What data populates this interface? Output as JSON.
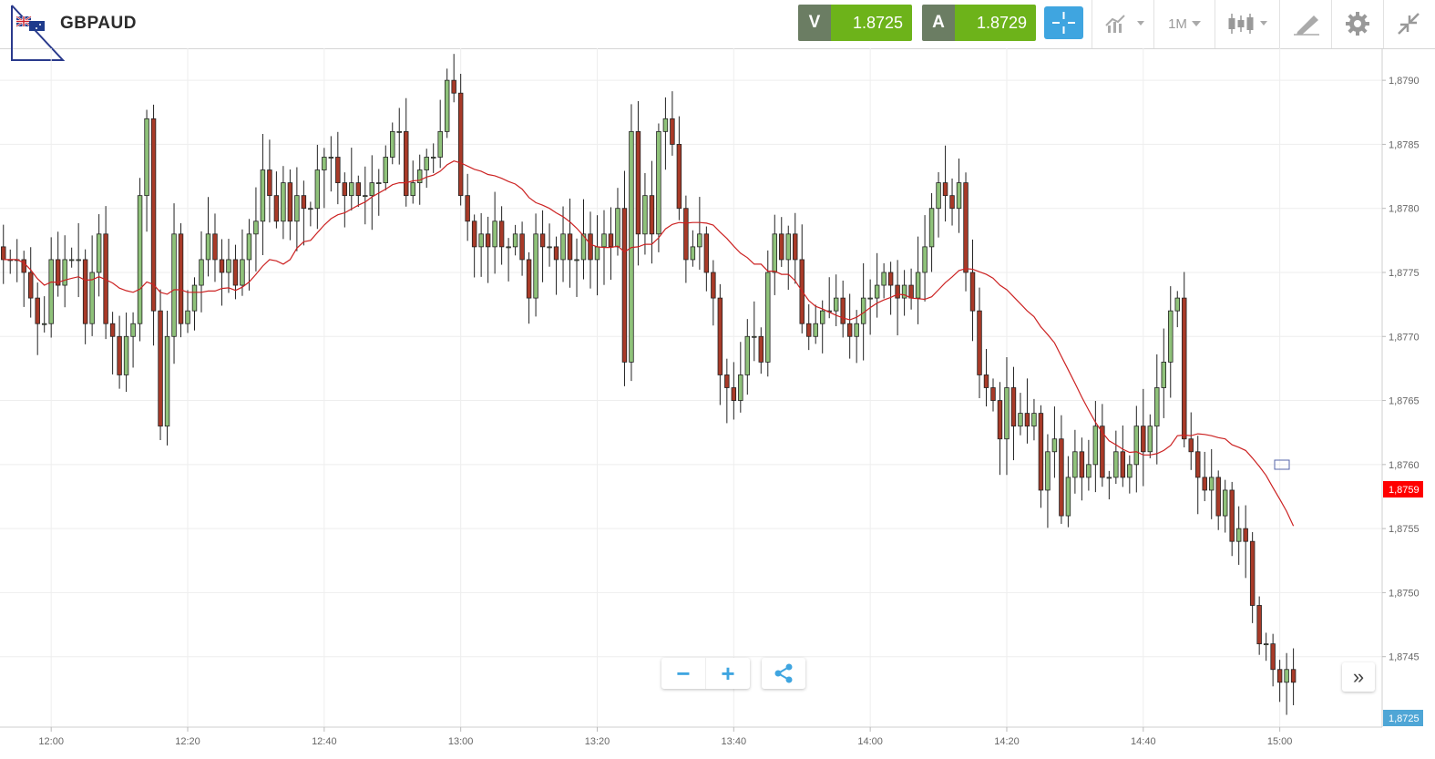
{
  "header": {
    "symbol": "GBPAUD",
    "sell_label": "V",
    "sell_price": "1.8725",
    "buy_label": "A",
    "buy_price": "1.8729",
    "timeframe": "1M",
    "icons": [
      "crosshair-icon",
      "chart-type-icon",
      "candlestick-icon",
      "drawing-tool-icon",
      "gear-icon",
      "collapse-icon"
    ]
  },
  "controls": {
    "zoom_out": "−",
    "zoom_in": "+",
    "share_icon": "share-icon",
    "scroll_forward": "»"
  },
  "colors": {
    "up": "#8fc27a",
    "down": "#a83a28",
    "ma": "#cc2222",
    "sell_bg": "#6db31a",
    "cross_bg": "#3fa5e0",
    "last_tag": "#ff0000",
    "current_tag": "#4fa6d6"
  },
  "chart_data": {
    "type": "candlestick",
    "x_tick_labels": [
      "12:00",
      "12:20",
      "12:40",
      "13:00",
      "13:20",
      "13:40",
      "14:00",
      "14:20",
      "14:40",
      "15:00"
    ],
    "y_tick_labels": [
      "1,8790",
      "1,8785",
      "1,8780",
      "1,8775",
      "1,8770",
      "1,8765",
      "1,8760",
      "1,8755",
      "1,8750",
      "1,8745"
    ],
    "y_ticks": [
      1.879,
      1.8785,
      1.878,
      1.8775,
      1.877,
      1.8765,
      1.876,
      1.8755,
      1.875,
      1.8745
    ],
    "ylim": [
      1.87395,
      1.87925
    ],
    "x_ticks_minutes": [
      0,
      20,
      40,
      60,
      80,
      100,
      120,
      140,
      160,
      180
    ],
    "xlim_minutes": [
      -7.5,
      195
    ],
    "last_price_label": "1,8759",
    "last_price": 1.8759,
    "current_price_label": "1,8725",
    "closes": [
      1.8776,
      1.8776,
      1.8776,
      1.8775,
      1.8773,
      1.8771,
      1.8771,
      1.8776,
      1.8774,
      1.8776,
      1.8776,
      1.8776,
      1.8771,
      1.8775,
      1.8778,
      1.8771,
      1.877,
      1.8767,
      1.877,
      1.8771,
      1.8781,
      1.8787,
      1.8772,
      1.8763,
      1.877,
      1.8778,
      1.8771,
      1.8772,
      1.8774,
      1.8776,
      1.8778,
      1.8776,
      1.8775,
      1.8776,
      1.8774,
      1.8776,
      1.8778,
      1.8779,
      1.8783,
      1.8781,
      1.8779,
      1.8782,
      1.8779,
      1.8781,
      1.878,
      1.878,
      1.8783,
      1.8784,
      1.8784,
      1.8782,
      1.8781,
      1.8782,
      1.8781,
      1.8781,
      1.8782,
      1.8782,
      1.8784,
      1.8786,
      1.8786,
      1.8781,
      1.8782,
      1.8783,
      1.8784,
      1.8784,
      1.8786,
      1.879,
      1.8789,
      1.8781,
      1.8779,
      1.8777,
      1.8778,
      1.8777,
      1.8779,
      1.8777,
      1.8777,
      1.8778,
      1.8776,
      1.8773,
      1.8778,
      1.8777,
      1.8777,
      1.8776,
      1.8778,
      1.8776,
      1.8776,
      1.8778,
      1.8776,
      1.8777,
      1.8778,
      1.8777,
      1.878,
      1.8768,
      1.8786,
      1.8778,
      1.8781,
      1.8778,
      1.8786,
      1.8787,
      1.8785,
      1.878,
      1.8776,
      1.8777,
      1.8778,
      1.8775,
      1.8773,
      1.8767,
      1.8766,
      1.8765,
      1.8767,
      1.877,
      1.877,
      1.8768,
      1.8775,
      1.8778,
      1.8776,
      1.8778,
      1.8776,
      1.8771,
      1.877,
      1.8771,
      1.8772,
      1.8772,
      1.8773,
      1.8771,
      1.877,
      1.8771,
      1.8773,
      1.8773,
      1.8774,
      1.8775,
      1.8774,
      1.8773,
      1.8774,
      1.8773,
      1.8775,
      1.8777,
      1.878,
      1.8782,
      1.8781,
      1.878,
      1.8782,
      1.8775,
      1.8772,
      1.8767,
      1.8766,
      1.8765,
      1.8762,
      1.8766,
      1.8763,
      1.8764,
      1.8763,
      1.8764,
      1.8758,
      1.8761,
      1.8762,
      1.8756,
      1.8759,
      1.8761,
      1.8759,
      1.876,
      1.8763,
      1.8759,
      1.8759,
      1.8761,
      1.8759,
      1.876,
      1.8763,
      1.8761,
      1.8763,
      1.8766,
      1.8768,
      1.8772,
      1.8773,
      1.8762,
      1.8761,
      1.8759,
      1.8758,
      1.8759,
      1.8756,
      1.8758,
      1.8754,
      1.8755,
      1.8754,
      1.8749,
      1.8746,
      1.8746,
      1.8744,
      1.8743,
      1.8744,
      1.8743
    ]
  }
}
